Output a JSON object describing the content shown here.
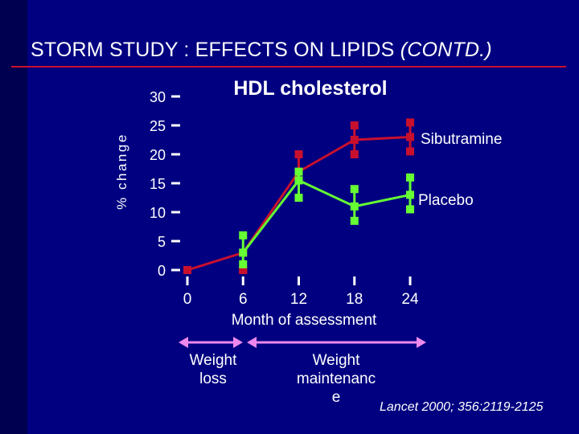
{
  "slide": {
    "title_main": "STORM STUDY : EFFECTS ON LIPIDS",
    "title_emph": "(CONTD.)",
    "citation": "Lancet 2000; 356:2119-2125",
    "phases": [
      {
        "label_lines": [
          "Weight",
          "loss"
        ]
      },
      {
        "label_lines": [
          "Weight",
          "maintenanc",
          "e"
        ]
      }
    ]
  },
  "colors": {
    "background": "#000080",
    "title_rule": "#c8102e",
    "sibutramine": "#c8102e",
    "placebo": "#66ff33",
    "phase_arrow": "#ee88ee",
    "axis": "#ffffff"
  },
  "chart_data": {
    "type": "line",
    "title": "HDL cholesterol",
    "xlabel": "Month of assessment",
    "ylabel": "% change",
    "x_ticks": [
      "0",
      "6",
      "12",
      "18",
      "24"
    ],
    "y_ticks": [
      "0",
      "5",
      "10",
      "15",
      "20",
      "25",
      "30"
    ],
    "xlim": [
      0,
      24
    ],
    "ylim": [
      0,
      30
    ],
    "series": [
      {
        "name": "Sibutramine",
        "x": [
          0,
          6,
          12,
          18,
          24
        ],
        "values": [
          0,
          3,
          17,
          22.5,
          23
        ],
        "err_low": [
          0,
          0,
          15.5,
          20,
          20.5
        ],
        "err_high": [
          0,
          0,
          20,
          25,
          25.5
        ]
      },
      {
        "name": "Placebo",
        "x": [
          6,
          12,
          18,
          24
        ],
        "values": [
          3,
          15.5,
          11,
          13
        ],
        "err_low": [
          1,
          12.5,
          8.5,
          10.5
        ],
        "err_high": [
          6,
          17,
          14,
          16
        ]
      }
    ]
  }
}
